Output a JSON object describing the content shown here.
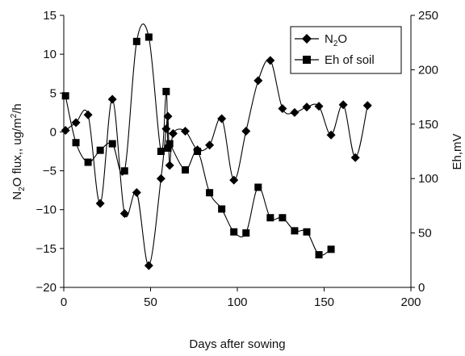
{
  "chart_data": {
    "type": "line",
    "xlabel": "Days after sowing",
    "ylabel_left": {
      "main": "N",
      "sub": "2",
      "rest": "O flux,, ug/m",
      "sup": "2",
      "tail": "/h"
    },
    "ylabel_right": "Eh,mV",
    "x_axis": {
      "min": 0,
      "max": 200,
      "ticks": [
        "0",
        "50",
        "100",
        "150",
        "200"
      ]
    },
    "y_left": {
      "min": -20,
      "max": 15,
      "ticks": [
        "−20",
        "−15",
        "−10",
        "−5",
        "0",
        "5",
        "10",
        "15"
      ]
    },
    "y_right": {
      "min": 0,
      "max": 250,
      "ticks": [
        "0",
        "50",
        "100",
        "150",
        "200",
        "250"
      ]
    },
    "grid": false,
    "legend_position": "top-right",
    "series": [
      {
        "name": "N2O",
        "legend_label": {
          "main": "N",
          "sub": "2",
          "rest": "O"
        },
        "axis": "left",
        "marker": "diamond",
        "x": [
          1,
          7,
          14,
          21,
          28,
          35,
          42,
          49,
          56,
          59,
          60,
          61,
          63,
          70,
          77,
          84,
          91,
          98,
          105,
          112,
          119,
          126,
          133,
          140,
          147,
          154,
          161,
          168,
          175
        ],
        "y": [
          0.2,
          1.2,
          2.2,
          -9.2,
          4.2,
          -10.5,
          -7.8,
          -17.2,
          -6.0,
          0.4,
          2.0,
          -4.3,
          -0.2,
          0.1,
          -2.3,
          -1.7,
          1.7,
          -6.2,
          0.1,
          6.6,
          9.2,
          3.0,
          2.5,
          3.2,
          3.3,
          -0.4,
          3.5,
          -3.3,
          3.4
        ]
      },
      {
        "name": "Eh of soil",
        "legend_label": {
          "main": "Eh of soil"
        },
        "axis": "right",
        "marker": "square",
        "x": [
          1,
          7,
          14,
          21,
          28,
          35,
          42,
          49,
          56,
          59,
          60,
          61,
          70,
          77,
          84,
          91,
          98,
          105,
          112,
          119,
          126,
          133,
          140,
          147,
          154
        ],
        "y": [
          176,
          133,
          115,
          126,
          132,
          107,
          226,
          230,
          125,
          180,
          128,
          132,
          108,
          125,
          87,
          72,
          51,
          50,
          92,
          64,
          64,
          52,
          51,
          30,
          35
        ]
      }
    ]
  }
}
